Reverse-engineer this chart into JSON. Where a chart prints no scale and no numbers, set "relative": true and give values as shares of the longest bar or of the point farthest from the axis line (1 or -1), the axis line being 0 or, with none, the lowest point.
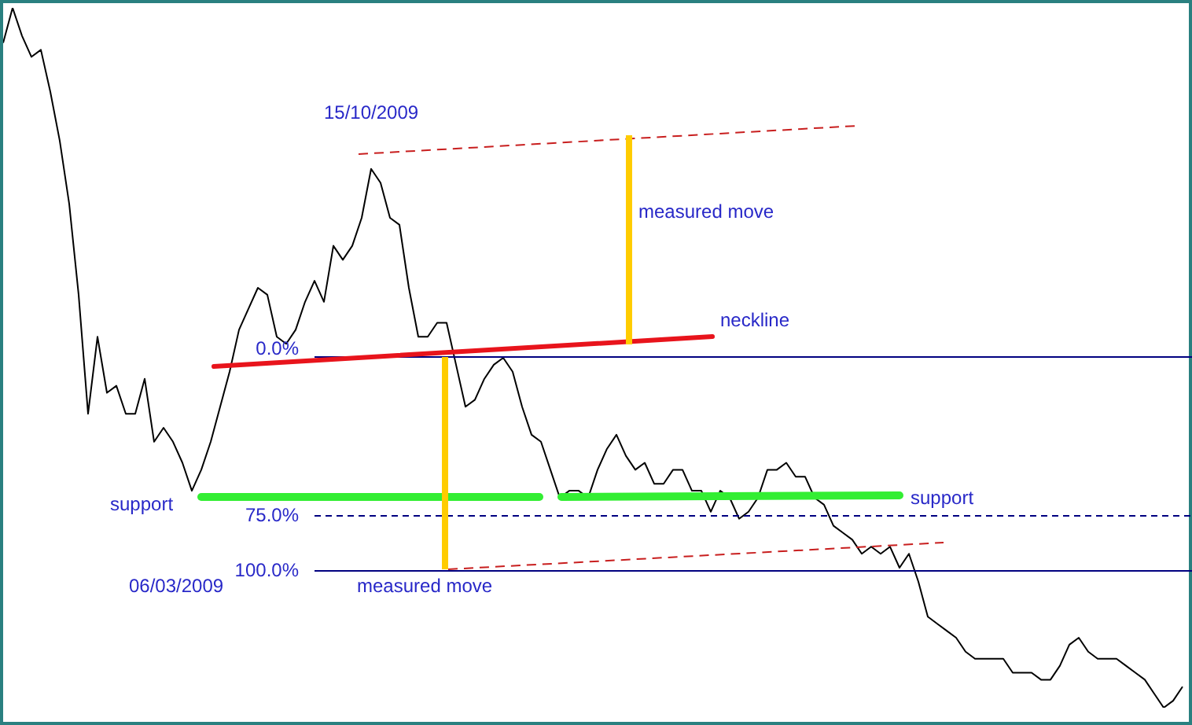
{
  "chart_data": {
    "type": "line",
    "relative": true,
    "legend": false,
    "grid": false,
    "marker": "none",
    "line_style": "solid",
    "categories": [
      null,
      null,
      null,
      null,
      null,
      null,
      null,
      null,
      null,
      null,
      null,
      null,
      null,
      null,
      null,
      null,
      null,
      null,
      null,
      null,
      null,
      null,
      null,
      null,
      null,
      null,
      null,
      null,
      null,
      null,
      null,
      null,
      null,
      null,
      null,
      null,
      null,
      null,
      null,
      null,
      null,
      null,
      null,
      null,
      null,
      null,
      null,
      null,
      null,
      null,
      null,
      null,
      null,
      null,
      null,
      null,
      null,
      null,
      null,
      null,
      null,
      null,
      null,
      null,
      null,
      null,
      null,
      null,
      null,
      null,
      null,
      null,
      null,
      null,
      null,
      null,
      null,
      null,
      null,
      null,
      null,
      null,
      null,
      null,
      null,
      null,
      null,
      null,
      null,
      null,
      null,
      null,
      null,
      null,
      null,
      null,
      null,
      null,
      null,
      null,
      null,
      null,
      null,
      null,
      null,
      null,
      null,
      null,
      null,
      null,
      null,
      null,
      null,
      null,
      null,
      null,
      null,
      null,
      null,
      null,
      null,
      null,
      null,
      null,
      null,
      null
    ],
    "series": [
      {
        "color": "#000000",
        "values": [
          0.95,
          1,
          0.96,
          0.93,
          0.94,
          0.88,
          0.81,
          0.72,
          0.59,
          0.42,
          0.53,
          0.45,
          0.46,
          0.42,
          0.42,
          0.47,
          0.38,
          0.4,
          0.38,
          0.35,
          0.31,
          0.34,
          0.38,
          0.43,
          0.48,
          0.54,
          0.57,
          0.6,
          0.59,
          0.53,
          0.52,
          0.54,
          0.58,
          0.61,
          0.58,
          0.66,
          0.64,
          0.66,
          0.7,
          0.77,
          0.75,
          0.7,
          0.69,
          0.6,
          0.53,
          0.53,
          0.55,
          0.55,
          0.49,
          0.43,
          0.44,
          0.47,
          0.49,
          0.5,
          0.48,
          0.43,
          0.39,
          0.38,
          0.34,
          0.3,
          0.31,
          0.31,
          0.3,
          0.34,
          0.37,
          0.39,
          0.36,
          0.34,
          0.35,
          0.32,
          0.32,
          0.34,
          0.34,
          0.31,
          0.31,
          0.28,
          0.31,
          0.3,
          0.27,
          0.28,
          0.3,
          0.34,
          0.34,
          0.35,
          0.33,
          0.33,
          0.3,
          0.29,
          0.26,
          0.25,
          0.24,
          0.22,
          0.23,
          0.22,
          0.23,
          0.2,
          0.22,
          0.18,
          0.13,
          0.12,
          0.11,
          0.1,
          0.08,
          0.07,
          0.07,
          0.07,
          0.07,
          0.05,
          0.05,
          0.05,
          0.04,
          0.04,
          0.06,
          0.09,
          0.1,
          0.08,
          0.07,
          0.07,
          0.07,
          0.06,
          0.05,
          0.04,
          0.02,
          0,
          0.01,
          0.03
        ]
      }
    ],
    "annotations": [
      "15/10/2009",
      "measured move",
      "neckline",
      "support",
      "support",
      "06/03/2009",
      "measured move",
      "0.0%",
      "75.0%",
      "100.0%"
    ]
  }
}
